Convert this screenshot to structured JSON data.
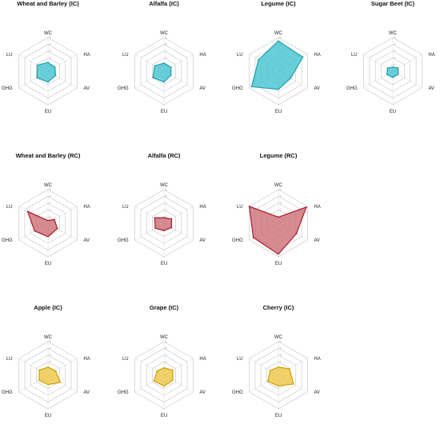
{
  "chart_data": [
    {
      "type": "radar",
      "title": "Wheat and Barley (IC)",
      "group": "IC",
      "axes": [
        "WC",
        "HA",
        "AV",
        "EU",
        "GHG",
        "LU"
      ],
      "values": [
        1.3,
        1.2,
        1.3,
        1.6,
        1.9,
        1.8
      ],
      "rlim": [
        0,
        5
      ],
      "color": "#3fc3cf",
      "stroke": "#1f9ea8"
    },
    {
      "type": "radar",
      "title": "Alfalfa (IC)",
      "group": "IC",
      "axes": [
        "WC",
        "HA",
        "AV",
        "EU",
        "GHG",
        "LU"
      ],
      "values": [
        1.2,
        1.2,
        1.2,
        1.6,
        1.9,
        1.6
      ],
      "rlim": [
        0,
        5
      ],
      "color": "#3fc3cf",
      "stroke": "#1f9ea8"
    },
    {
      "type": "radar",
      "title": "Legume (IC)",
      "group": "IC",
      "axes": [
        "WC",
        "HA",
        "AV",
        "EU",
        "GHG",
        "LU"
      ],
      "values": [
        4.5,
        4.2,
        2.1,
        2.7,
        4.6,
        3.4
      ],
      "rlim": [
        0,
        5
      ],
      "color": "#3fc3cf",
      "stroke": "#1f9ea8"
    },
    {
      "type": "radar",
      "title": "Sugar Beet (IC)",
      "group": "IC",
      "axes": [
        "WC",
        "HA",
        "AV",
        "EU",
        "GHG",
        "LU"
      ],
      "values": [
        0.6,
        0.9,
        0.9,
        0.9,
        1.0,
        0.9
      ],
      "rlim": [
        0,
        5
      ],
      "color": "#3fc3cf",
      "stroke": "#1f9ea8"
    },
    {
      "type": "radar",
      "title": "Wheat and Barley (RC)",
      "group": "RC",
      "axes": [
        "WC",
        "HA",
        "AV",
        "EU",
        "GHG",
        "LU"
      ],
      "values": [
        0.4,
        1.1,
        1.6,
        2.0,
        2.3,
        3.5
      ],
      "rlim": [
        0,
        5
      ],
      "color": "#cc6b73",
      "stroke": "#a61d2c"
    },
    {
      "type": "radar",
      "title": "Alfalfa (RC)",
      "group": "RC",
      "axes": [
        "WC",
        "HA",
        "AV",
        "EU",
        "GHG",
        "LU"
      ],
      "values": [
        0.8,
        1.3,
        1.3,
        1.1,
        1.5,
        1.6
      ],
      "rlim": [
        0,
        5
      ],
      "color": "#cc6b73",
      "stroke": "#a61d2c"
    },
    {
      "type": "radar",
      "title": "Legume (RC)",
      "group": "RC",
      "axes": [
        "WC",
        "HA",
        "AV",
        "EU",
        "GHG",
        "LU"
      ],
      "values": [
        0.9,
        4.8,
        3.1,
        4.6,
        4.3,
        5.0
      ],
      "rlim": [
        0,
        5
      ],
      "color": "#cc6b73",
      "stroke": "#a61d2c"
    },
    {
      "type": "radar",
      "title": "Apple (IC)",
      "group": "IC",
      "axes": [
        "WC",
        "HA",
        "AV",
        "EU",
        "GHG",
        "LU"
      ],
      "values": [
        1.2,
        1.3,
        2.1,
        1.4,
        1.5,
        1.5
      ],
      "rlim": [
        0,
        5
      ],
      "color": "#f0c542",
      "stroke": "#c9a100"
    },
    {
      "type": "radar",
      "title": "Grape (IC)",
      "group": "IC",
      "axes": [
        "WC",
        "HA",
        "AV",
        "EU",
        "GHG",
        "LU"
      ],
      "values": [
        1.1,
        1.5,
        1.5,
        1.6,
        1.7,
        1.2
      ],
      "rlim": [
        0,
        5
      ],
      "color": "#f0c542",
      "stroke": "#c9a100"
    },
    {
      "type": "radar",
      "title": "Cherry (IC)",
      "group": "IC",
      "axes": [
        "WC",
        "HA",
        "AV",
        "EU",
        "GHG",
        "LU"
      ],
      "values": [
        1.2,
        1.9,
        2.6,
        1.6,
        1.8,
        1.4
      ],
      "rlim": [
        0,
        5
      ],
      "color": "#f0c542",
      "stroke": "#c9a100"
    }
  ]
}
